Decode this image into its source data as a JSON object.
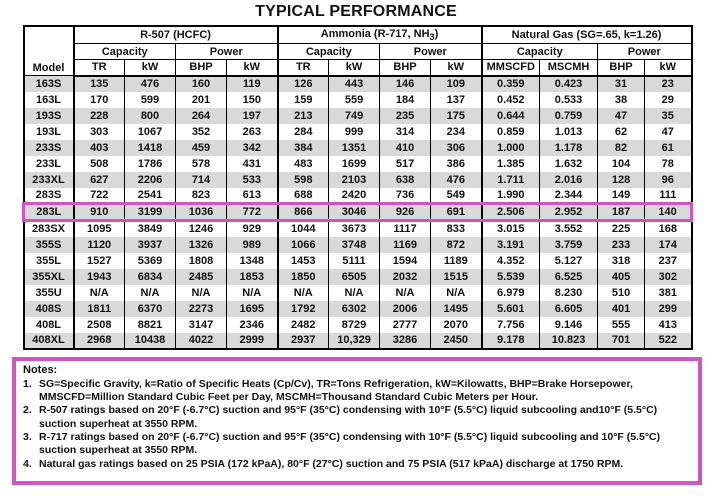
{
  "title": "TYPICAL PERFORMANCE",
  "colors": {
    "highlight": "#d253c6",
    "row_shade": "#d9d9d9"
  },
  "table": {
    "model_header": "Model",
    "group_r507": "R-507 (HCFC)",
    "group_ammonia_prefix": "Ammonia (R-717, NH",
    "group_ammonia_sub": "3",
    "group_ammonia_suffix": ")",
    "group_natgas": "Natural Gas (SG=.65, k=1.26)",
    "subheaders": {
      "capacity": "Capacity",
      "power": "Power"
    },
    "units": [
      "TR",
      "kW",
      "BHP",
      "kW",
      "TR",
      "kW",
      "BHP",
      "kW",
      "MMSCFD",
      "MSCMH",
      "BHP",
      "kW"
    ],
    "rows": [
      {
        "model": "163S",
        "highlighted": false,
        "values": [
          "135",
          "476",
          "160",
          "119",
          "126",
          "443",
          "146",
          "109",
          "0.359",
          "0.423",
          "31",
          "23"
        ]
      },
      {
        "model": "163L",
        "highlighted": false,
        "values": [
          "170",
          "599",
          "201",
          "150",
          "159",
          "559",
          "184",
          "137",
          "0.452",
          "0.533",
          "38",
          "29"
        ]
      },
      {
        "model": "193S",
        "highlighted": false,
        "values": [
          "228",
          "800",
          "264",
          "197",
          "213",
          "749",
          "235",
          "175",
          "0.644",
          "0.759",
          "47",
          "35"
        ]
      },
      {
        "model": "193L",
        "highlighted": false,
        "values": [
          "303",
          "1067",
          "352",
          "263",
          "284",
          "999",
          "314",
          "234",
          "0.859",
          "1.013",
          "62",
          "47"
        ]
      },
      {
        "model": "233S",
        "highlighted": false,
        "values": [
          "403",
          "1418",
          "459",
          "342",
          "384",
          "1351",
          "410",
          "306",
          "1.000",
          "1.178",
          "82",
          "61"
        ]
      },
      {
        "model": "233L",
        "highlighted": false,
        "values": [
          "508",
          "1786",
          "578",
          "431",
          "483",
          "1699",
          "517",
          "386",
          "1.385",
          "1.632",
          "104",
          "78"
        ]
      },
      {
        "model": "233XL",
        "highlighted": false,
        "values": [
          "627",
          "2206",
          "714",
          "533",
          "598",
          "2103",
          "638",
          "476",
          "1.711",
          "2.016",
          "128",
          "96"
        ]
      },
      {
        "model": "283S",
        "highlighted": false,
        "values": [
          "722",
          "2541",
          "823",
          "613",
          "688",
          "2420",
          "736",
          "549",
          "1.990",
          "2.344",
          "149",
          "111"
        ]
      },
      {
        "model": "283L",
        "highlighted": true,
        "values": [
          "910",
          "3199",
          "1036",
          "772",
          "866",
          "3046",
          "926",
          "691",
          "2.506",
          "2.952",
          "187",
          "140"
        ]
      },
      {
        "model": "283SX",
        "highlighted": false,
        "values": [
          "1095",
          "3849",
          "1246",
          "929",
          "1044",
          "3673",
          "1117",
          "833",
          "3.015",
          "3.552",
          "225",
          "168"
        ]
      },
      {
        "model": "355S",
        "highlighted": false,
        "values": [
          "1120",
          "3937",
          "1326",
          "989",
          "1066",
          "3748",
          "1169",
          "872",
          "3.191",
          "3.759",
          "233",
          "174"
        ]
      },
      {
        "model": "355L",
        "highlighted": false,
        "values": [
          "1527",
          "5369",
          "1808",
          "1348",
          "1453",
          "5111",
          "1594",
          "1189",
          "4.352",
          "5.127",
          "318",
          "237"
        ]
      },
      {
        "model": "355XL",
        "highlighted": false,
        "values": [
          "1943",
          "6834",
          "2485",
          "1853",
          "1850",
          "6505",
          "2032",
          "1515",
          "5.539",
          "6.525",
          "405",
          "302"
        ]
      },
      {
        "model": "355U",
        "highlighted": false,
        "values": [
          "N/A",
          "N/A",
          "N/A",
          "N/A",
          "N/A",
          "N/A",
          "N/A",
          "N/A",
          "6.979",
          "8.230",
          "510",
          "381"
        ]
      },
      {
        "model": "408S",
        "highlighted": false,
        "values": [
          "1811",
          "6370",
          "2273",
          "1695",
          "1792",
          "6302",
          "2006",
          "1495",
          "5.601",
          "6.605",
          "401",
          "299"
        ]
      },
      {
        "model": "408L",
        "highlighted": false,
        "values": [
          "2508",
          "8821",
          "3147",
          "2346",
          "2482",
          "8729",
          "2777",
          "2070",
          "7.756",
          "9.146",
          "555",
          "413"
        ]
      },
      {
        "model": "408XL",
        "highlighted": false,
        "values": [
          "2968",
          "10438",
          "4022",
          "2999",
          "2937",
          "10,329",
          "3286",
          "2450",
          "9.178",
          "10.823",
          "701",
          "522"
        ]
      }
    ]
  },
  "notes": {
    "heading": "Notes:",
    "items": [
      {
        "num": "1.",
        "text": "SG=Specific Gravity, k=Ratio of Specific Heats (Cp/Cv), TR=Tons Refrigeration, kW=Kilowatts, BHP=Brake Horsepower, MMSCFD=Million Standard Cubic Feet per Day, MSCMH=Thousand Standard Cubic Meters per Hour."
      },
      {
        "num": "2.",
        "text": "R-507 ratings based on 20°F (-6.7°C) suction and 95°F (35°C) condensing with 10°F (5.5°C) liquid subcooling and10°F (5.5°C) suction superheat at 3550 RPM."
      },
      {
        "num": "3.",
        "text": "R-717 ratings based on 20°F (-6.7°C) suction and 95°F (35°C) condensing with 10°F (5.5°C) liquid subcooling and 10°F (5.5°C) suction superheat at 3550 RPM."
      },
      {
        "num": "4.",
        "text": "Natural gas ratings based on 25 PSIA (172 kPaA), 80°F (27°C) suction and 75 PSIA (517 kPaA) discharge at 1750 RPM."
      }
    ]
  }
}
